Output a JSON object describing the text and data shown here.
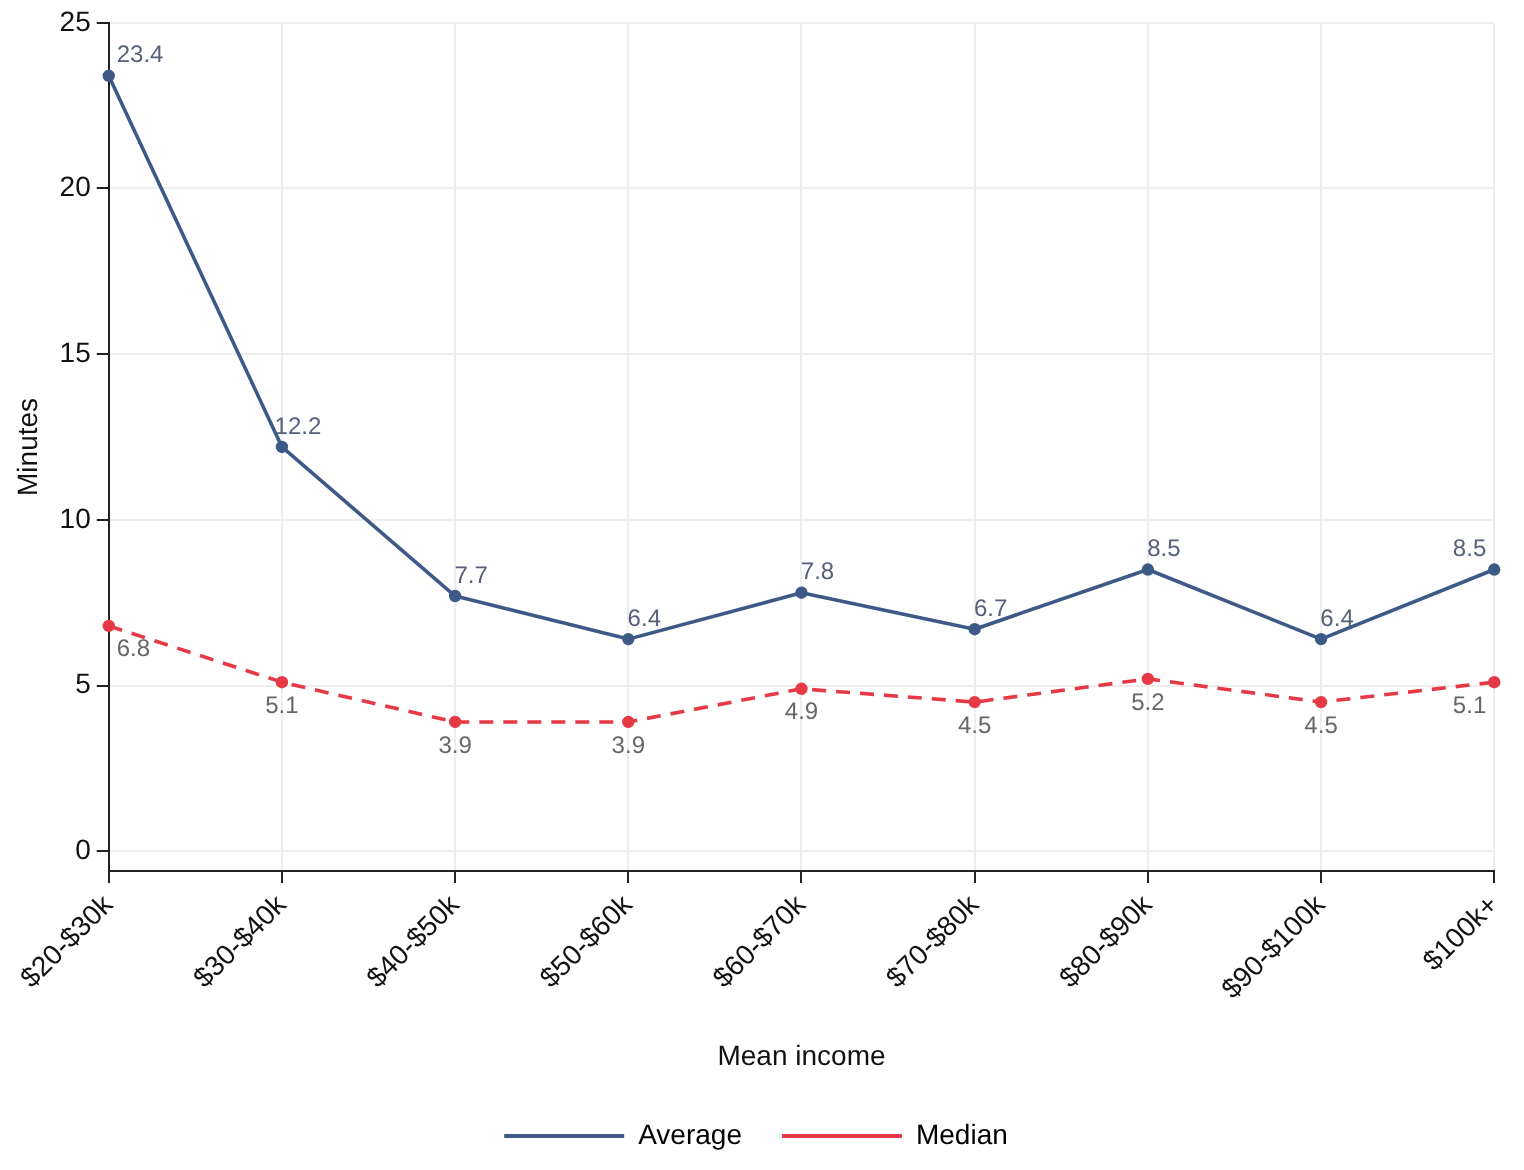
{
  "chart_data": {
    "type": "line",
    "xlabel": "Mean income",
    "ylabel": "Minutes",
    "categories": [
      "$20-$30k",
      "$30-$40k",
      "$40-$50k",
      "$50-$60k",
      "$60-$70k",
      "$70-$80k",
      "$80-$90k",
      "$90-$100k",
      "$100k+"
    ],
    "series": [
      {
        "name": "Average",
        "color": "#3d5a87",
        "line_style": "solid",
        "values": [
          23.4,
          12.2,
          7.7,
          6.4,
          7.8,
          6.7,
          8.5,
          6.4,
          8.5
        ]
      },
      {
        "name": "Median",
        "color": "#e63946",
        "line_style": "dashed",
        "values": [
          6.8,
          5.1,
          3.9,
          3.9,
          4.9,
          4.5,
          5.2,
          4.5,
          5.1
        ]
      }
    ],
    "ylim": [
      -0.6,
      25
    ],
    "yticks": [
      0,
      5,
      10,
      15,
      20,
      25
    ],
    "grid": true,
    "legend": "bottom",
    "marker": "circle",
    "data_labels": true
  }
}
